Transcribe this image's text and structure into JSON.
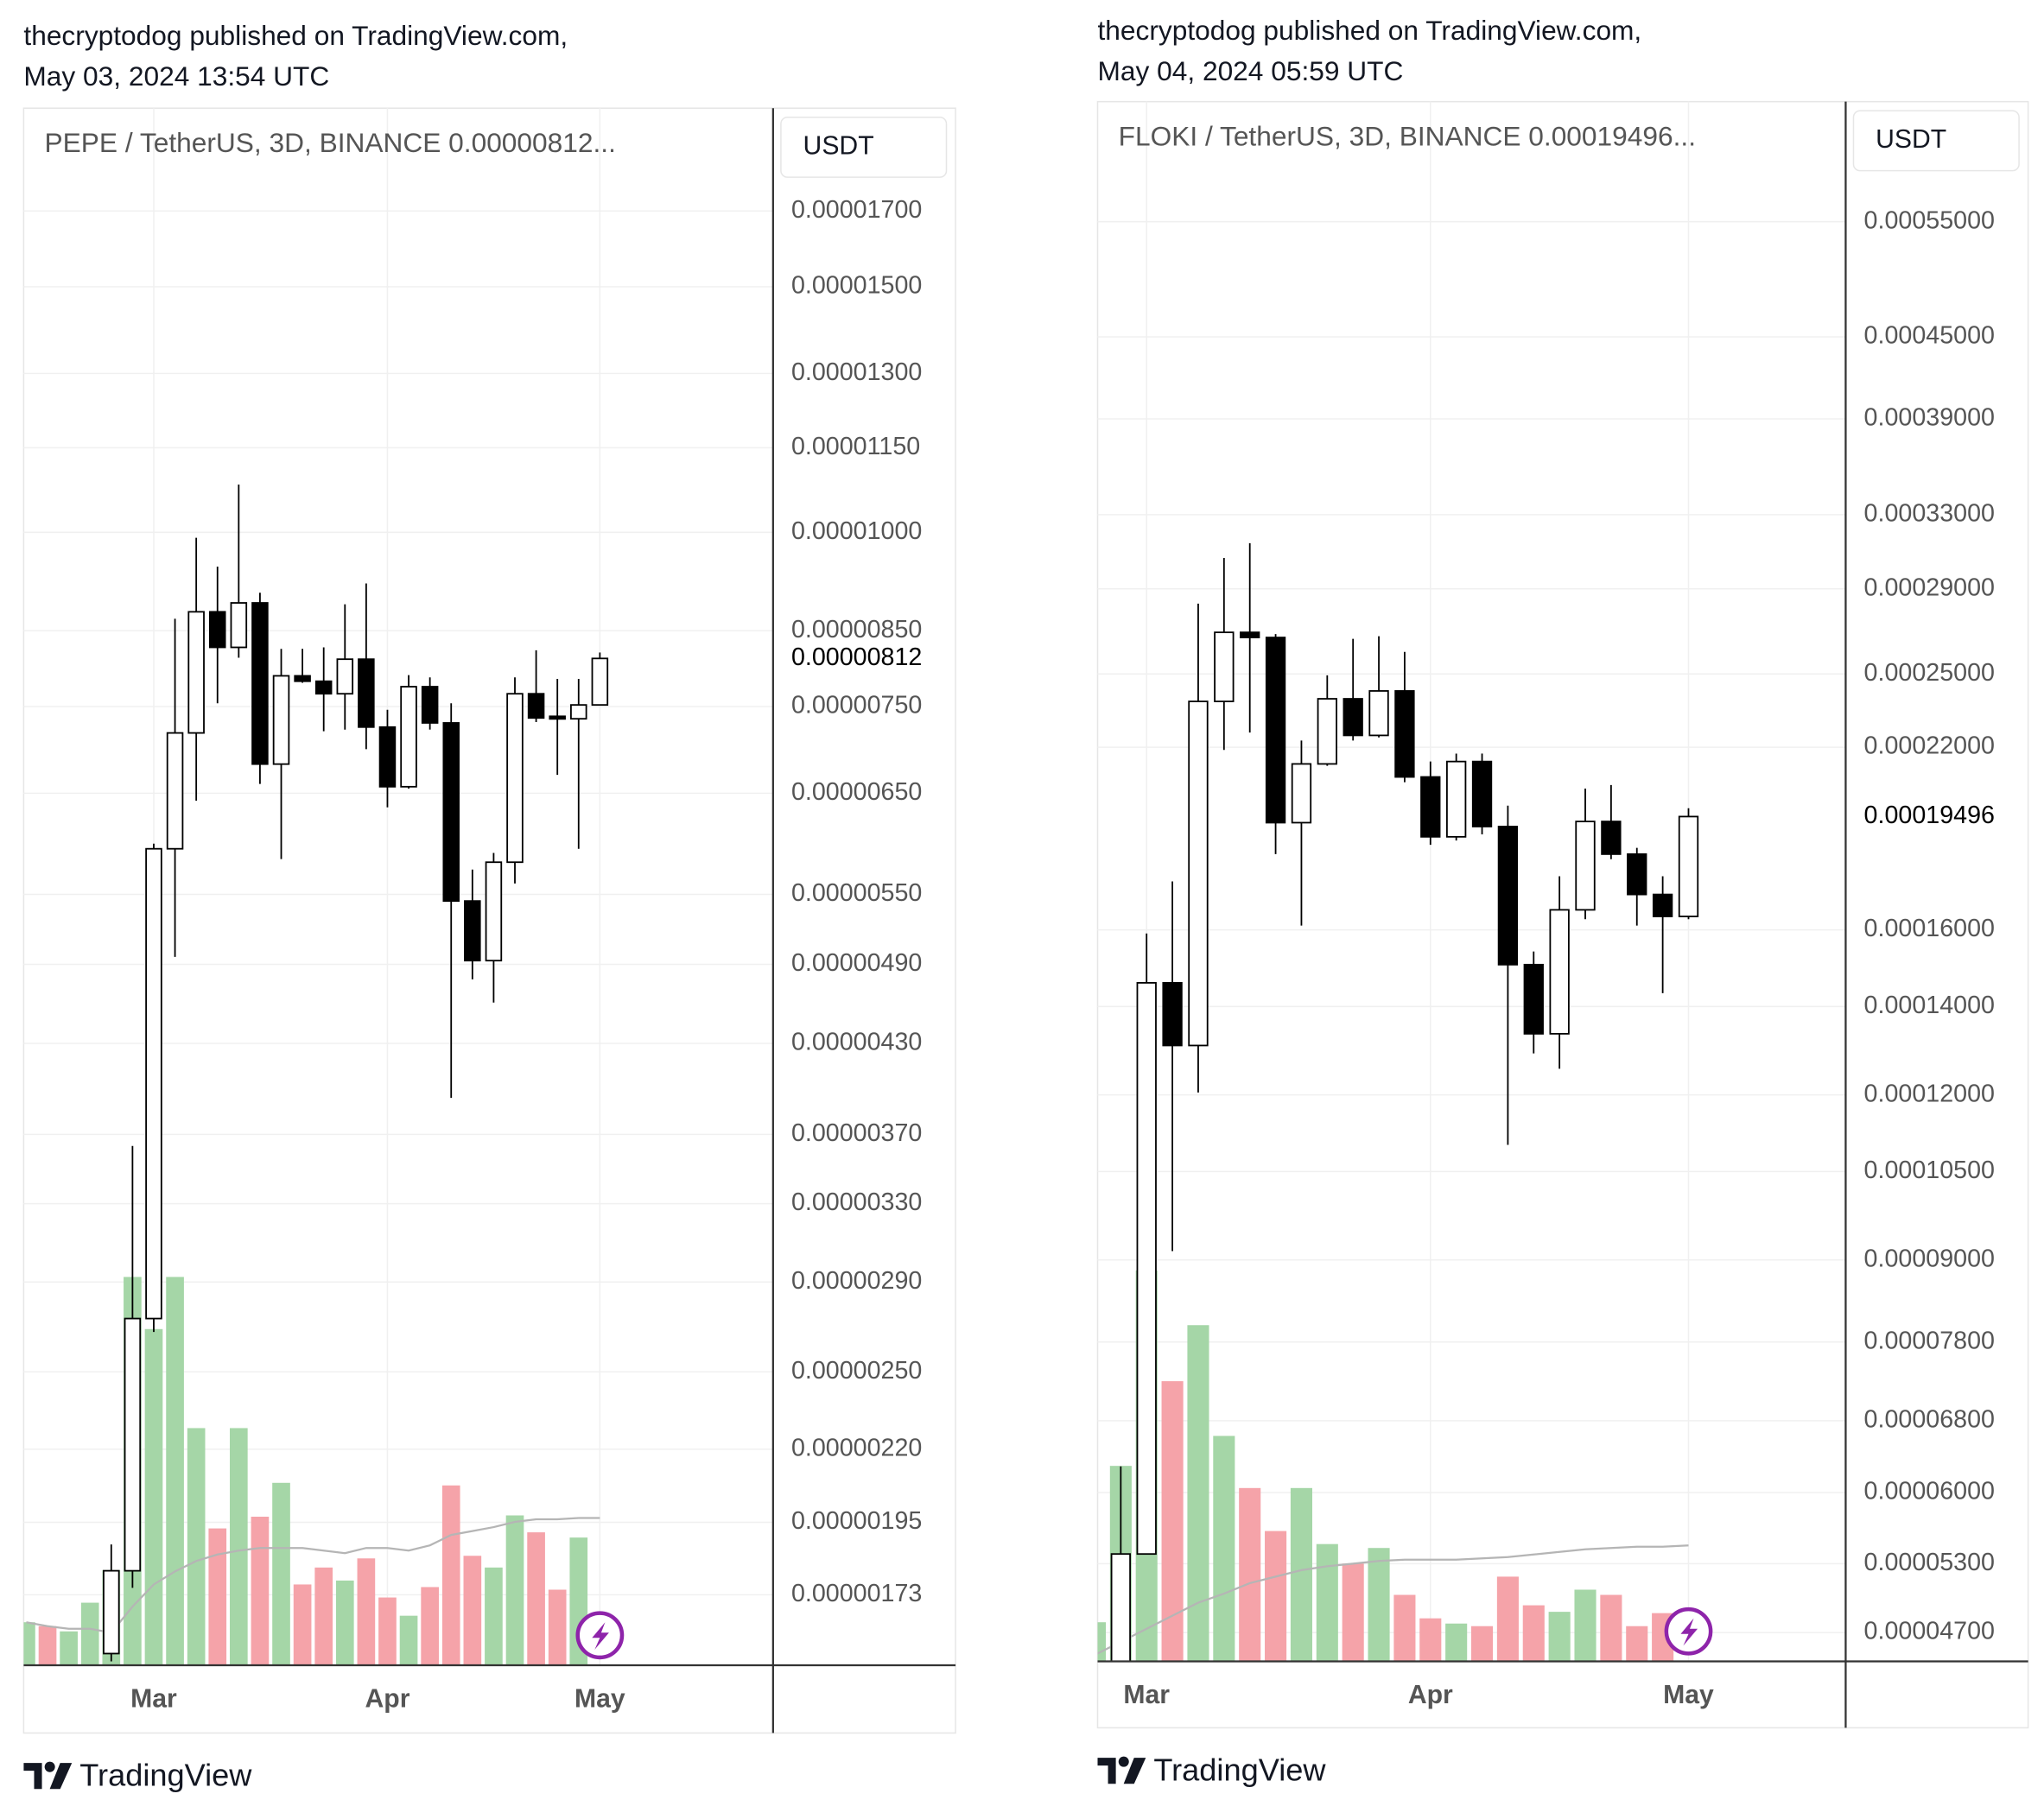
{
  "chart_data": [
    {
      "type": "candlestick",
      "log": true,
      "grid": true,
      "header": [
        "thecryptodog published on TradingView.com,",
        "May 03, 2024 13:54 UTC"
      ],
      "title": "PEPE / TetherUS, 3D, BINANCE  0.00000812...",
      "currency": "USDT",
      "footer": "TradingView",
      "up_color": "#ffffff",
      "down_color": "#000000",
      "ma_color": "#b5b5b5",
      "categories": [
        null,
        null,
        null,
        null,
        null,
        null,
        "Mar",
        null,
        null,
        null,
        null,
        null,
        null,
        null,
        null,
        null,
        null,
        "Apr",
        null,
        null,
        null,
        null,
        null,
        null,
        null,
        null,
        null,
        "May"
      ],
      "open": [
        null,
        null,
        null,
        null,
        1.57e-06,
        1.8e-06,
        2.73e-06,
        5.93e-06,
        7.18e-06,
        8.77e-06,
        8.27e-06,
        8.9e-06,
        6.82e-06,
        7.89e-06,
        7.82e-06,
        7.66e-06,
        8.11e-06,
        7.25e-06,
        6.57e-06,
        7.75e-06,
        7.3e-06,
        5.44e-06,
        4.93e-06,
        5.8e-06,
        7.66e-06,
        7.38e-06,
        7.35e-06,
        7.52e-06
      ],
      "high": [
        null,
        null,
        null,
        null,
        1.88e-06,
        3.63e-06,
        5.98e-06,
        8.67e-06,
        9.91e-06,
        9.45e-06,
        1.082e-05,
        9.05e-06,
        8.25e-06,
        8.25e-06,
        8.27e-06,
        8.88e-06,
        9.19e-06,
        7.46e-06,
        7.9e-06,
        7.87e-06,
        7.54e-06,
        5.73e-06,
        5.89e-06,
        7.87e-06,
        8.23e-06,
        7.85e-06,
        7.85e-06,
        8.2e-06
      ],
      "low": [
        null,
        null,
        null,
        null,
        1.55e-06,
        1.75e-06,
        2.67e-06,
        4.96e-06,
        6.42e-06,
        7.54e-06,
        8.13e-06,
        6.6e-06,
        5.83e-06,
        7.8e-06,
        7.2e-06,
        7.22e-06,
        6.99e-06,
        6.35e-06,
        6.55e-06,
        7.22e-06,
        3.93e-06,
        4.78e-06,
        4.6e-06,
        5.6e-06,
        7.31e-06,
        6.7e-06,
        5.93e-06,
        7.52e-06
      ],
      "close": [
        null,
        null,
        null,
        null,
        1.8e-06,
        2.73e-06,
        5.93e-06,
        7.18e-06,
        8.77e-06,
        8.27e-06,
        8.9e-06,
        6.82e-06,
        7.89e-06,
        7.82e-06,
        7.66e-06,
        8.11e-06,
        7.25e-06,
        6.57e-06,
        7.75e-06,
        7.3e-06,
        5.44e-06,
        4.93e-06,
        5.8e-06,
        7.66e-06,
        7.36e-06,
        7.35e-06,
        7.52e-06,
        8.12e-06
      ],
      "volume": [
        33,
        30,
        26,
        48,
        73,
        298,
        258,
        298,
        182,
        105,
        182,
        114,
        140,
        62,
        75,
        65,
        82,
        52,
        38,
        60,
        138,
        84,
        75,
        115,
        102,
        58,
        98,
        null
      ],
      "volume_colors": [
        "#a5d6a7",
        "#f5a3a9",
        "#a5d6a7",
        "#a5d6a7",
        "#a5d6a7",
        "#a5d6a7",
        "#a5d6a7",
        "#a5d6a7",
        "#a5d6a7",
        "#f5a3a9",
        "#a5d6a7",
        "#f5a3a9",
        "#a5d6a7",
        "#f5a3a9",
        "#f5a3a9",
        "#a5d6a7",
        "#f5a3a9",
        "#f5a3a9",
        "#a5d6a7",
        "#f5a3a9",
        "#f5a3a9",
        "#f5a3a9",
        "#a5d6a7",
        "#a5d6a7",
        "#f5a3a9",
        "#f5a3a9",
        "#a5d6a7",
        null
      ],
      "volume_ma": [
        33,
        30,
        28,
        28,
        25,
        45,
        62,
        72,
        80,
        85,
        88,
        90,
        90,
        90,
        88,
        86,
        90,
        90,
        88,
        92,
        100,
        103,
        106,
        110,
        112,
        112,
        113,
        113
      ],
      "last_price": {
        "value": 8.12e-06,
        "label": "0.00000812"
      },
      "ylim": [
        1.54e-06,
        2.006e-05
      ],
      "yticks": [
        {
          "value": 1.7e-05,
          "label": "0.00001700"
        },
        {
          "value": 1.5e-05,
          "label": "0.00001500"
        },
        {
          "value": 1.3e-05,
          "label": "0.00001300"
        },
        {
          "value": 1.15e-05,
          "label": "0.00001150"
        },
        {
          "value": 1e-05,
          "label": "0.00001000"
        },
        {
          "value": 8.5e-06,
          "label": "0.00000850"
        },
        {
          "value": 7.5e-06,
          "label": "0.00000750"
        },
        {
          "value": 6.5e-06,
          "label": "0.00000650"
        },
        {
          "value": 5.5e-06,
          "label": "0.00000550"
        },
        {
          "value": 4.9e-06,
          "label": "0.00000490"
        },
        {
          "value": 4.3e-06,
          "label": "0.00000430"
        },
        {
          "value": 3.7e-06,
          "label": "0.00000370"
        },
        {
          "value": 3.3e-06,
          "label": "0.00000330"
        },
        {
          "value": 2.9e-06,
          "label": "0.00000290"
        },
        {
          "value": 2.5e-06,
          "label": "0.00000250"
        },
        {
          "value": 2.2e-06,
          "label": "0.00000220"
        },
        {
          "value": 1.95e-06,
          "label": "0.00000195"
        },
        {
          "value": 1.73e-06,
          "label": "0.00000173"
        }
      ]
    },
    {
      "type": "candlestick",
      "log": true,
      "grid": true,
      "header": [
        "thecryptodog published on TradingView.com,",
        "May 04, 2024 05:59 UTC"
      ],
      "title": "FLOKI / TetherUS, 3D, BINANCE  0.00019496...",
      "currency": "USDT",
      "footer": "TradingView",
      "up_color": "#ffffff",
      "down_color": "#000000",
      "ma_color": "#b5b5b5",
      "categories": [
        null,
        null,
        "Mar",
        null,
        null,
        null,
        null,
        null,
        null,
        null,
        null,
        null,
        null,
        "Apr",
        null,
        null,
        null,
        null,
        null,
        null,
        null,
        null,
        null,
        "May"
      ],
      "open": [
        null,
        4.47e-05,
        5.39e-05,
        0.0001459,
        0.0001308,
        0.0002383,
        0.0002688,
        0.0002664,
        0.0001929,
        0.0002137,
        0.0002394,
        0.0002246,
        0.0002427,
        0.0002089,
        0.0001882,
        0.0002146,
        0.0001916,
        0.0001506,
        0.0001335,
        0.0001657,
        0.0001933,
        0.0001826,
        0.0001702,
        0.0001638
      ],
      "high": [
        null,
        6.28e-05,
        0.000159,
        0.0001741,
        0.0002826,
        0.000306,
        0.000314,
        0.000268,
        0.0002226,
        0.0002494,
        0.0002658,
        0.000267,
        0.0002598,
        0.0002146,
        0.0002176,
        0.0002176,
        0.0001987,
        0.0001541,
        0.0001757,
        0.0002047,
        0.000206,
        0.0001846,
        0.0001757,
        0.0001978
      ],
      "low": [
        null,
        4.47e-05,
        5.39e-05,
        9.14e-05,
        0.0001205,
        0.000219,
        0.0002257,
        0.0001826,
        0.0001612,
        0.000213,
        0.0002226,
        0.0002238,
        0.000207,
        0.0001856,
        0.000187,
        0.000189,
        0.00011,
        0.000129,
        0.0001256,
        0.000163,
        0.000181,
        0.0001612,
        0.0001433,
        0.000163
      ],
      "close": [
        null,
        5.39e-05,
        0.0001459,
        0.0001308,
        0.0002383,
        0.0002688,
        0.0002664,
        0.0001929,
        0.0002137,
        0.0002394,
        0.0002246,
        0.0002427,
        0.0002089,
        0.0001882,
        0.0002146,
        0.0001916,
        0.0001506,
        0.0001335,
        0.0001657,
        0.0001933,
        0.0001826,
        0.0001702,
        0.0001638,
        0.00019496
      ],
      "volume": [
        30,
        150,
        300,
        215,
        258,
        173,
        133,
        100,
        133,
        90,
        75,
        87,
        51,
        33,
        29,
        27,
        65,
        43,
        38,
        55,
        51,
        27,
        37,
        null
      ],
      "volume_colors": [
        "#a5d6a7",
        "#a5d6a7",
        "#a5d6a7",
        "#f5a3a9",
        "#a5d6a7",
        "#a5d6a7",
        "#f5a3a9",
        "#f5a3a9",
        "#a5d6a7",
        "#a5d6a7",
        "#f5a3a9",
        "#a5d6a7",
        "#f5a3a9",
        "#f5a3a9",
        "#a5d6a7",
        "#f5a3a9",
        "#f5a3a9",
        "#f5a3a9",
        "#a5d6a7",
        "#a5d6a7",
        "#f5a3a9",
        "#f5a3a9",
        "#f5a3a9",
        null
      ],
      "volume_ma": [
        5,
        15,
        25,
        35,
        45,
        52,
        60,
        65,
        70,
        73,
        75,
        77,
        78,
        78,
        78,
        79,
        80,
        82,
        84,
        86,
        87,
        88,
        88,
        89
      ],
      "last_price": {
        "value": 0.00019496,
        "label": "0.00019496"
      },
      "ylim": [
        4.47e-05,
        0.000675
      ],
      "yticks": [
        {
          "value": 0.00055,
          "label": "0.00055000"
        },
        {
          "value": 0.00045,
          "label": "0.00045000"
        },
        {
          "value": 0.00039,
          "label": "0.00039000"
        },
        {
          "value": 0.00033,
          "label": "0.00033000"
        },
        {
          "value": 0.00029,
          "label": "0.00029000"
        },
        {
          "value": 0.00025,
          "label": "0.00025000"
        },
        {
          "value": 0.00022,
          "label": "0.00022000"
        },
        {
          "value": 0.00016,
          "label": "0.00016000"
        },
        {
          "value": 0.00014,
          "label": "0.00014000"
        },
        {
          "value": 0.00012,
          "label": "0.00012000"
        },
        {
          "value": 0.000105,
          "label": "0.00010500"
        },
        {
          "value": 9e-05,
          "label": "0.00009000"
        },
        {
          "value": 7.8e-05,
          "label": "0.00007800"
        },
        {
          "value": 6.8e-05,
          "label": "0.00006800"
        },
        {
          "value": 6e-05,
          "label": "0.00006000"
        },
        {
          "value": 5.3e-05,
          "label": "0.00005300"
        },
        {
          "value": 4.7e-05,
          "label": "0.00004700"
        }
      ]
    }
  ]
}
